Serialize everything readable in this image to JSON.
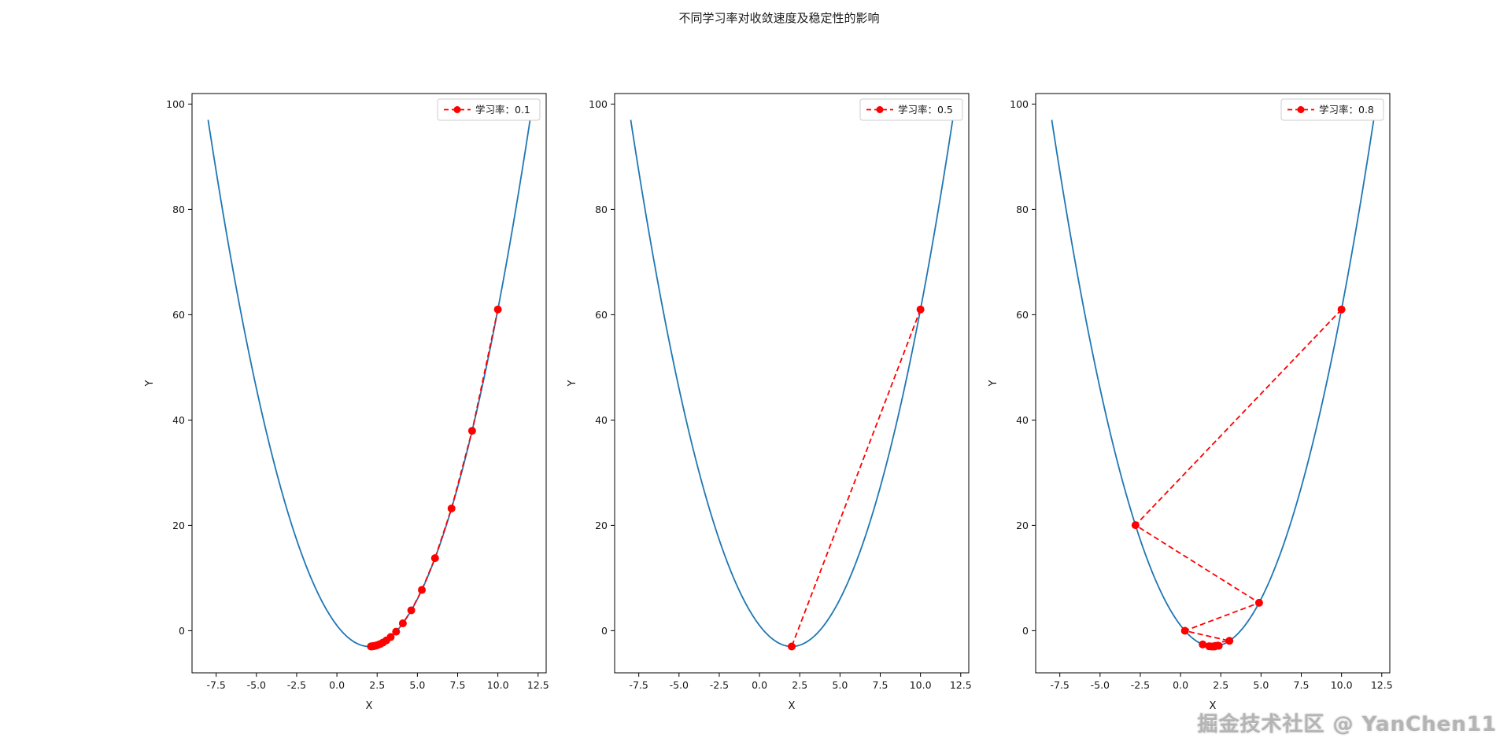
{
  "page": {
    "title": "不同学习率对收敛速度及稳定性的影响",
    "watermark": "掘金技术社区 @ YanChen11",
    "background": "#ffffff"
  },
  "chart_data": [
    {
      "type": "line",
      "title": "",
      "xlabel": "X",
      "ylabel": "Y",
      "xlim": [
        -9,
        13
      ],
      "ylim": [
        -8,
        102
      ],
      "xticks": [
        -7.5,
        -5.0,
        -2.5,
        0.0,
        2.5,
        5.0,
        7.5,
        10.0,
        12.5
      ],
      "yticks": [
        0,
        20,
        40,
        60,
        80,
        100
      ],
      "grid": false,
      "legend": {
        "label": "学习率：0.1",
        "loc": "upper right"
      },
      "curve": {
        "name": "loss-function-parabola",
        "color": "#1f77b4",
        "function": "y=(x-2)^2-3",
        "vertex": [
          2,
          -3
        ],
        "coef": 1,
        "x_range": [
          -8,
          12
        ]
      },
      "descent": {
        "name": "gradient-descent-path",
        "color": "#ff0000",
        "learning_rate": 0.1,
        "x": [
          10,
          8.4,
          7.12,
          6.096,
          5.277,
          4.621,
          4.097,
          3.678,
          3.342,
          3.074,
          2.859,
          2.687,
          2.55,
          2.44,
          2.352,
          2.281,
          2.225,
          2.18,
          2.144,
          2.115
        ],
        "y": [
          61,
          37.96,
          23.214,
          13.777,
          7.737,
          3.872,
          1.398,
          -0.185,
          -1.198,
          -1.847,
          -2.262,
          -2.528,
          -2.698,
          -2.807,
          -2.876,
          -2.921,
          -2.949,
          -2.968,
          -2.979,
          -2.987
        ]
      }
    },
    {
      "type": "line",
      "title": "",
      "xlabel": "X",
      "ylabel": "Y",
      "xlim": [
        -9,
        13
      ],
      "ylim": [
        -8,
        102
      ],
      "xticks": [
        -7.5,
        -5.0,
        -2.5,
        0.0,
        2.5,
        5.0,
        7.5,
        10.0,
        12.5
      ],
      "yticks": [
        0,
        20,
        40,
        60,
        80,
        100
      ],
      "grid": false,
      "legend": {
        "label": "学习率：0.5",
        "loc": "upper right"
      },
      "curve": {
        "name": "loss-function-parabola",
        "color": "#1f77b4",
        "function": "y=(x-2)^2-3",
        "vertex": [
          2,
          -3
        ],
        "coef": 1,
        "x_range": [
          -8,
          12
        ]
      },
      "descent": {
        "name": "gradient-descent-path",
        "color": "#ff0000",
        "learning_rate": 0.5,
        "x": [
          10,
          2
        ],
        "y": [
          61,
          -3
        ]
      }
    },
    {
      "type": "line",
      "title": "",
      "xlabel": "X",
      "ylabel": "Y",
      "xlim": [
        -9,
        13
      ],
      "ylim": [
        -8,
        102
      ],
      "xticks": [
        -7.5,
        -5.0,
        -2.5,
        0.0,
        2.5,
        5.0,
        7.5,
        10.0,
        12.5
      ],
      "yticks": [
        0,
        20,
        40,
        60,
        80,
        100
      ],
      "grid": false,
      "legend": {
        "label": "学习率：0.8",
        "loc": "upper right"
      },
      "curve": {
        "name": "loss-function-parabola",
        "color": "#1f77b4",
        "function": "y=(x-2)^2-3",
        "vertex": [
          2,
          -3
        ],
        "coef": 1,
        "x_range": [
          -8,
          12
        ]
      },
      "descent": {
        "name": "gradient-descent-path",
        "color": "#ff0000",
        "learning_rate": 0.8,
        "x": [
          10,
          -2.8,
          4.88,
          0.272,
          3.037,
          1.378,
          2.373,
          1.776,
          2.134,
          1.919,
          2.048
        ],
        "y": [
          61,
          20.04,
          5.294,
          -0.014,
          -1.925,
          -2.613,
          -2.861,
          -2.95,
          -2.982,
          -2.994,
          -2.998
        ]
      }
    }
  ]
}
